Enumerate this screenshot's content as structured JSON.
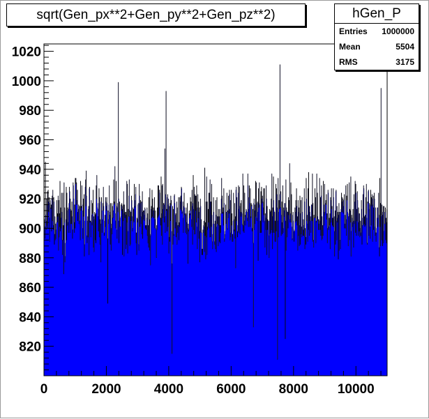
{
  "chart_data": {
    "type": "bar",
    "title": "sqrt(Gen_px**2+Gen_py**2+Gen_pz**2)",
    "xlabel": "",
    "ylabel": "",
    "xlim": [
      0,
      11000
    ],
    "ylim": [
      800,
      1025
    ],
    "xticks": [
      0,
      2000,
      4000,
      6000,
      8000,
      10000
    ],
    "yticks": [
      820,
      840,
      860,
      880,
      900,
      920,
      940,
      960,
      980,
      1000,
      1020
    ],
    "xtick_labels": [
      "0",
      "2000",
      "4000",
      "6000",
      "8000",
      "10000"
    ],
    "ytick_labels": [
      "820",
      "840",
      "860",
      "880",
      "900",
      "920",
      "940",
      "960",
      "980",
      "1000",
      "1020"
    ],
    "fill_color": "#0000ff",
    "line_color": "#000000",
    "grid": false,
    "nbins": 1100,
    "bin_width": 10,
    "bin_mean": 909,
    "bin_spread": 18,
    "notable_bins": [
      {
        "x": 2385,
        "y": 999
      },
      {
        "x": 7565,
        "y": 1011
      },
      {
        "x": 3915,
        "y": 993
      },
      {
        "x": 10805,
        "y": 995
      },
      {
        "x": 4105,
        "y": 815
      },
      {
        "x": 7485,
        "y": 811
      },
      {
        "x": 7735,
        "y": 825
      },
      {
        "x": 2045,
        "y": 849
      },
      {
        "x": 6715,
        "y": 833
      }
    ]
  },
  "stats": {
    "name": "hGen_P",
    "rows": [
      {
        "label": "Entries",
        "value": "1000000"
      },
      {
        "label": "Mean",
        "value": "5504"
      },
      {
        "label": "RMS",
        "value": "3175"
      }
    ]
  }
}
